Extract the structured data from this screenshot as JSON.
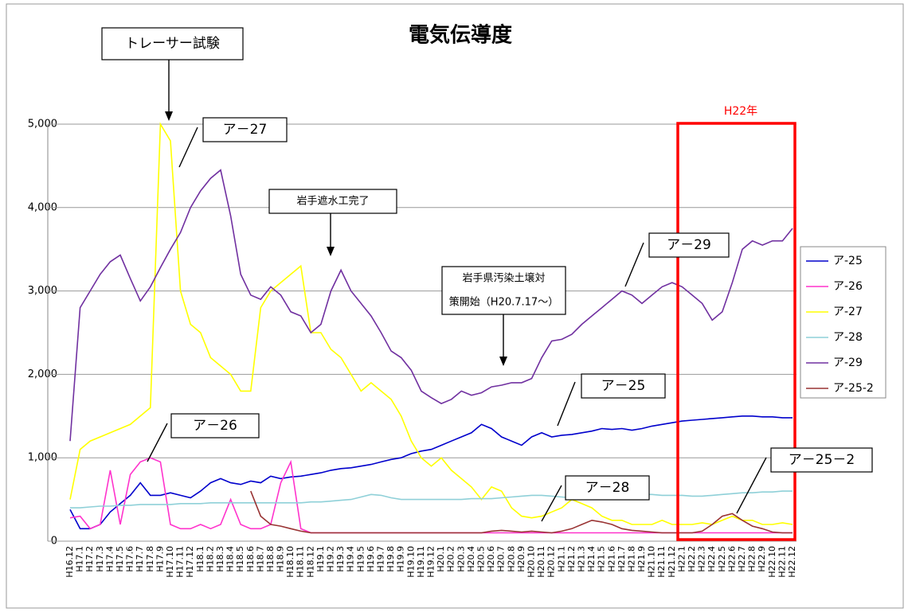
{
  "chart_data": {
    "type": "line",
    "title": "電気伝導度",
    "categories": [
      "H16.12",
      "H17.1",
      "H17.2",
      "H17.3",
      "H17.4",
      "H17.5",
      "H17.6",
      "H17.7",
      "H17.8",
      "H17.9",
      "H17.10",
      "H17.11",
      "H17.12",
      "H18.1",
      "H18.2",
      "H18.3",
      "H18.4",
      "H18.5",
      "H18.6",
      "H18.7",
      "H18.8",
      "H18.9",
      "H18.10",
      "H18.11",
      "H18.12",
      "H19.1",
      "H19.2",
      "H19.3",
      "H19.4",
      "H19.5",
      "H19.6",
      "H19.7",
      "H19.8",
      "H19.9",
      "H19.10",
      "H19.11",
      "H19.12",
      "H20.1",
      "H20.2",
      "H20.3",
      "H20.4",
      "H20.5",
      "H20.6",
      "H20.7",
      "H20.8",
      "H20.9",
      "H20.10",
      "H20.11",
      "H20.12",
      "H21.1",
      "H21.2",
      "H21.3",
      "H21.4",
      "H21.5",
      "H21.6",
      "H21.7",
      "H21.8",
      "H21.9",
      "H21.10",
      "H21.11",
      "H21.12",
      "H22.1",
      "H22.2",
      "H22.3",
      "H22.4",
      "H22.5",
      "H22.6",
      "H22.7",
      "H22.8",
      "H22.9",
      "H22.10",
      "H22.11",
      "H22.12"
    ],
    "series": [
      {
        "name": "ア-25",
        "color": "#0000cc",
        "values": [
          380,
          150,
          150,
          200,
          350,
          450,
          550,
          700,
          550,
          550,
          580,
          550,
          520,
          600,
          700,
          750,
          700,
          680,
          720,
          700,
          780,
          750,
          770,
          780,
          800,
          820,
          850,
          870,
          880,
          900,
          920,
          950,
          980,
          1000,
          1050,
          1080,
          1100,
          1150,
          1200,
          1250,
          1300,
          1400,
          1350,
          1250,
          1200,
          1150,
          1250,
          1300,
          1250,
          1270,
          1280,
          1300,
          1320,
          1350,
          1340,
          1350,
          1330,
          1350,
          1380,
          1400,
          1420,
          1440,
          1450,
          1460,
          1470,
          1480,
          1490,
          1500,
          1500,
          1490,
          1490,
          1480,
          1480
        ]
      },
      {
        "name": "ア-26",
        "color": "#ff33cc",
        "values": [
          280,
          300,
          150,
          200,
          850,
          200,
          800,
          950,
          1000,
          950,
          200,
          150,
          150,
          200,
          150,
          200,
          500,
          200,
          150,
          150,
          200,
          700,
          950,
          150,
          100,
          100,
          100,
          100,
          100,
          100,
          100,
          100,
          100,
          100,
          100,
          100,
          100,
          100,
          100,
          100,
          100,
          100,
          100,
          100,
          100,
          100,
          100,
          100,
          100,
          100,
          100,
          100,
          100,
          100,
          100,
          100,
          100,
          100,
          100,
          100,
          100,
          100,
          100,
          100,
          100,
          100,
          100,
          100,
          100,
          100,
          100,
          100,
          100
        ]
      },
      {
        "name": "ア-27",
        "color": "#ffff00",
        "values": [
          500,
          1100,
          1200,
          1250,
          1300,
          1350,
          1400,
          1500,
          1600,
          5000,
          4800,
          3000,
          2600,
          2500,
          2200,
          2100,
          2000,
          1800,
          1800,
          2800,
          3000,
          3100,
          3200,
          3300,
          2500,
          2500,
          2300,
          2200,
          2000,
          1800,
          1900,
          1800,
          1700,
          1500,
          1200,
          1000,
          900,
          1000,
          850,
          750,
          650,
          500,
          650,
          600,
          400,
          300,
          280,
          300,
          350,
          400,
          500,
          450,
          400,
          300,
          250,
          250,
          200,
          200,
          200,
          250,
          200,
          200,
          200,
          220,
          200,
          250,
          300,
          250,
          250,
          200,
          200,
          220,
          200
        ]
      },
      {
        "name": "ア-28",
        "color": "#8fd0d8",
        "values": [
          400,
          400,
          410,
          420,
          420,
          430,
          430,
          440,
          440,
          440,
          440,
          450,
          450,
          450,
          460,
          460,
          460,
          460,
          460,
          460,
          460,
          460,
          460,
          460,
          470,
          470,
          480,
          490,
          500,
          530,
          560,
          550,
          520,
          500,
          500,
          500,
          500,
          500,
          500,
          500,
          510,
          510,
          510,
          520,
          530,
          540,
          550,
          550,
          540,
          530,
          520,
          520,
          520,
          530,
          540,
          550,
          560,
          560,
          560,
          550,
          550,
          550,
          540,
          540,
          550,
          560,
          570,
          580,
          580,
          590,
          590,
          600,
          600
        ]
      },
      {
        "name": "ア-29",
        "color": "#7030a0",
        "values": [
          1200,
          2800,
          3000,
          3200,
          3350,
          3430,
          3150,
          2880,
          3050,
          3280,
          3500,
          3700,
          4000,
          4200,
          4350,
          4450,
          3900,
          3200,
          2950,
          2900,
          3050,
          2950,
          2750,
          2700,
          2500,
          2600,
          3000,
          3250,
          3000,
          2850,
          2700,
          2500,
          2280,
          2200,
          2050,
          1800,
          1720,
          1650,
          1700,
          1800,
          1750,
          1780,
          1850,
          1870,
          1900,
          1900,
          1950,
          2200,
          2400,
          2420,
          2480,
          2600,
          2700,
          2800,
          2900,
          3000,
          2950,
          2850,
          2950,
          3050,
          3100,
          3050,
          2950,
          2850,
          2650,
          2750,
          3100,
          3500,
          3600,
          3550,
          3600,
          3600,
          3750
        ]
      },
      {
        "name": "ア-25-2",
        "color": "#993333",
        "values": [
          null,
          null,
          null,
          null,
          null,
          null,
          null,
          null,
          null,
          null,
          null,
          null,
          null,
          null,
          null,
          null,
          null,
          null,
          600,
          300,
          200,
          180,
          150,
          120,
          100,
          100,
          100,
          100,
          100,
          100,
          100,
          100,
          100,
          100,
          100,
          100,
          100,
          100,
          100,
          100,
          100,
          100,
          120,
          130,
          120,
          110,
          120,
          110,
          100,
          120,
          150,
          200,
          250,
          230,
          200,
          150,
          130,
          120,
          110,
          100,
          100,
          100,
          100,
          120,
          200,
          300,
          330,
          250,
          180,
          150,
          110,
          100,
          100
        ]
      }
    ],
    "ylim": [
      0,
      5000
    ],
    "yticks": [
      0,
      {
        "value": 1000,
        "label": "1,000"
      },
      {
        "value": 2000,
        "label": "2,000"
      },
      {
        "value": 3000,
        "label": "3,000"
      },
      {
        "value": 4000,
        "label": "4,000"
      },
      {
        "value": 5000,
        "label": "5,000"
      }
    ],
    "grid": true,
    "legend": "right",
    "annotations": [
      {
        "lines": [
          "トレーサー試験"
        ]
      },
      {
        "lines": [
          "ア－27"
        ]
      },
      {
        "lines": [
          "岩手遮水工完了"
        ]
      },
      {
        "lines": [
          "ア－29"
        ]
      },
      {
        "lines": [
          "岩手県汚染土壌対",
          "策開始（H20.7.17～）"
        ]
      },
      {
        "lines": [
          "ア－25"
        ]
      },
      {
        "lines": [
          "ア－26"
        ]
      },
      {
        "lines": [
          "ア－28"
        ]
      },
      {
        "lines": [
          "ア－25－2"
        ]
      },
      {
        "lines": [
          "H22年"
        ]
      }
    ]
  }
}
